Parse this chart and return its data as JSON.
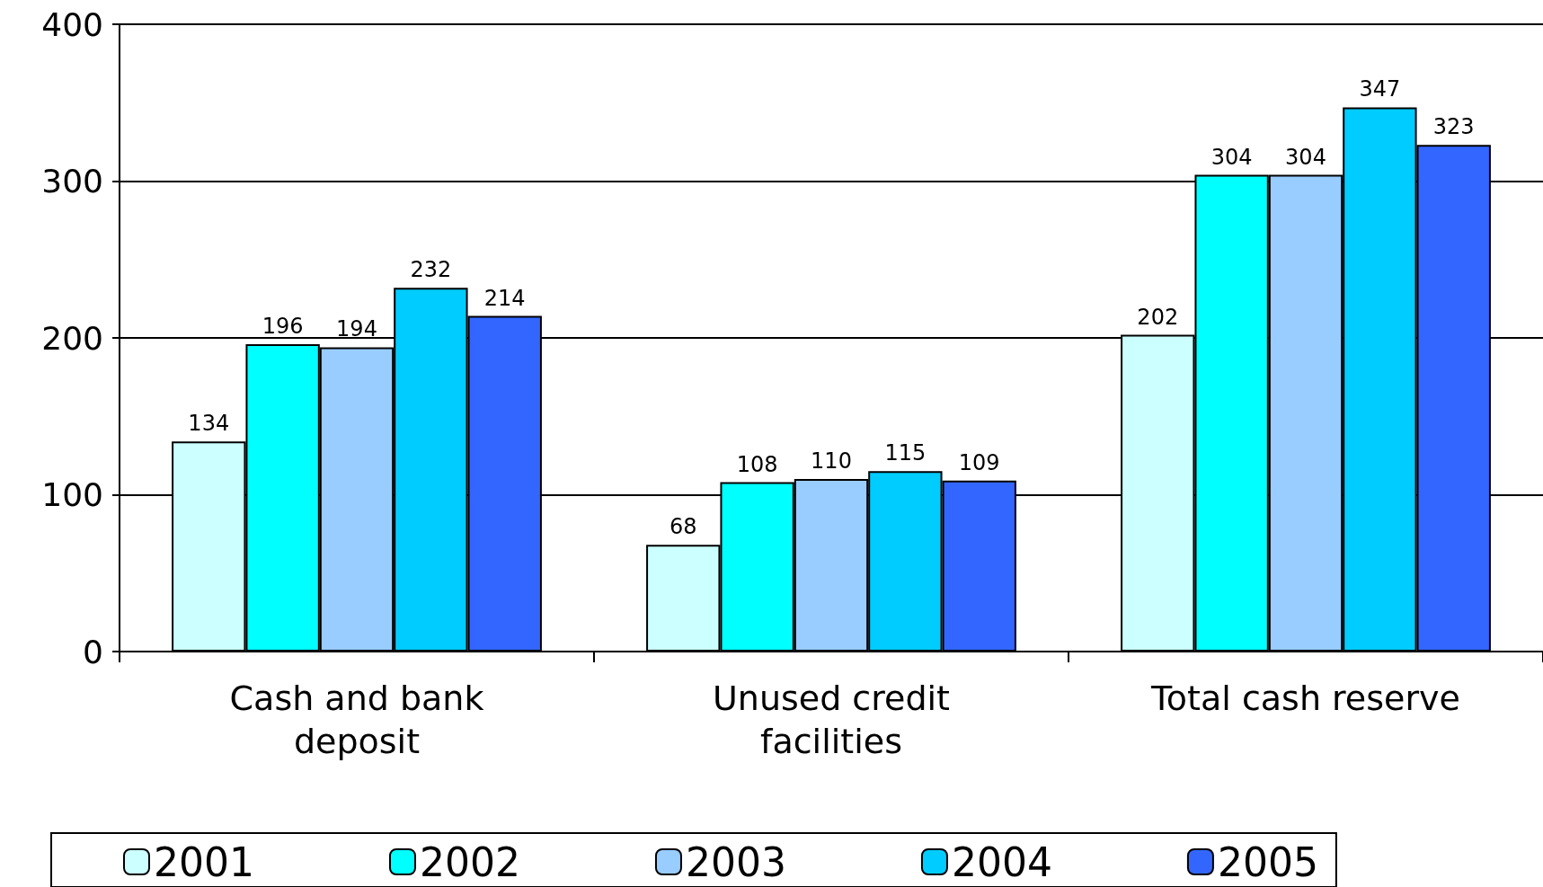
{
  "chart_data": {
    "type": "bar",
    "categories": [
      "Cash and bank\ndeposit",
      "Unused credit\nfacilities",
      "Total cash reserve"
    ],
    "series": [
      {
        "name": "2001",
        "color": "#ccffff",
        "values": [
          134,
          68,
          202
        ]
      },
      {
        "name": "2002",
        "color": "#00ffff",
        "values": [
          196,
          108,
          304
        ]
      },
      {
        "name": "2003",
        "color": "#99ccff",
        "values": [
          194,
          110,
          304
        ]
      },
      {
        "name": "2004",
        "color": "#00ccff",
        "values": [
          232,
          115,
          347
        ]
      },
      {
        "name": "2005",
        "color": "#3366ff",
        "values": [
          214,
          109,
          323
        ]
      }
    ],
    "ylim": [
      0,
      400
    ],
    "yticks": [
      0,
      100,
      200,
      300,
      400
    ],
    "grid": "y",
    "legend": "bottom",
    "data_labels": true
  }
}
